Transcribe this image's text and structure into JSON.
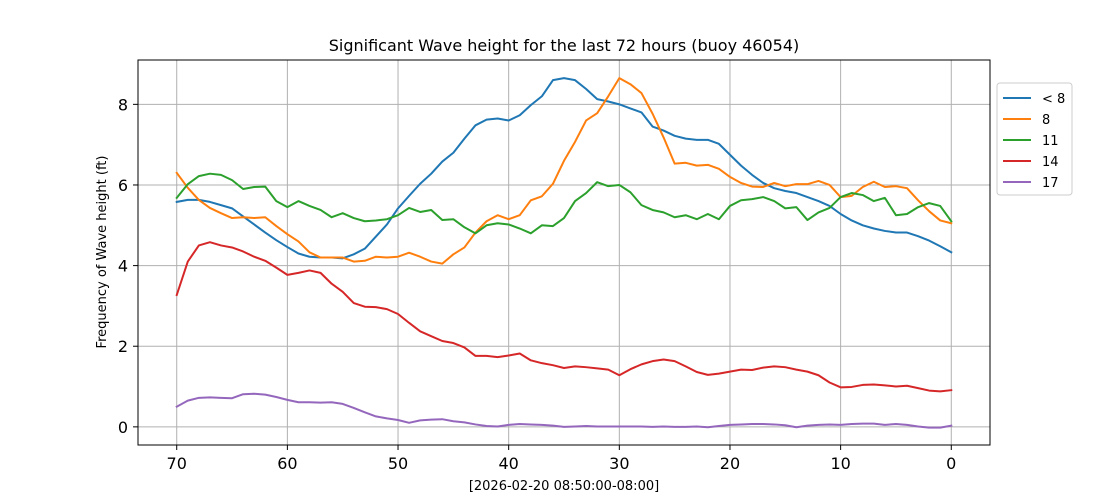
{
  "chart_data": {
    "type": "line",
    "title": "Significant Wave height for the last 72 hours (buoy 46054)",
    "xlabel": "[2026-02-20 08:50:00-08:00]",
    "ylabel": "Frequency of Wave height (ft)",
    "xlim": [
      73.5,
      -3.5
    ],
    "ylim": [
      -0.45,
      9.1
    ],
    "xticks": [
      70,
      60,
      50,
      40,
      30,
      20,
      10,
      0
    ],
    "yticks": [
      0,
      2,
      4,
      6,
      8
    ],
    "grid": true,
    "legend_position": "right",
    "x": [
      70,
      69,
      68,
      67,
      66,
      65,
      64,
      63,
      62,
      61,
      60,
      59,
      58,
      57,
      56,
      55,
      54,
      53,
      52,
      51,
      50,
      49,
      48,
      47,
      46,
      45,
      44,
      43,
      42,
      41,
      40,
      39,
      38,
      37,
      36,
      35,
      34,
      33,
      32,
      31,
      30,
      29,
      28,
      27,
      26,
      25,
      24,
      23,
      22,
      21,
      20,
      19,
      18,
      17,
      16,
      15,
      14,
      13,
      12,
      11,
      10,
      9,
      8,
      7,
      6,
      5,
      4,
      3,
      2,
      1,
      0
    ],
    "series": [
      {
        "name": "< 8",
        "color": "#1f77b4",
        "values": [
          5.58,
          5.63,
          5.63,
          5.58,
          5.5,
          5.42,
          5.22,
          5.02,
          4.82,
          4.63,
          4.46,
          4.3,
          4.22,
          4.2,
          4.2,
          4.18,
          4.28,
          4.42,
          4.72,
          5.02,
          5.42,
          5.73,
          6.03,
          6.28,
          6.58,
          6.8,
          7.15,
          7.48,
          7.62,
          7.65,
          7.6,
          7.73,
          7.98,
          8.2,
          8.6,
          8.65,
          8.6,
          8.38,
          8.13,
          8.07,
          8.0,
          7.9,
          7.8,
          7.45,
          7.35,
          7.22,
          7.15,
          7.12,
          7.12,
          7.02,
          6.75,
          6.48,
          6.25,
          6.05,
          5.92,
          5.85,
          5.8,
          5.7,
          5.6,
          5.48,
          5.28,
          5.12,
          5.0,
          4.92,
          4.86,
          4.82,
          4.82,
          4.73,
          4.62,
          4.48,
          4.33
        ]
      },
      {
        "name": "8",
        "color": "#ff7f0e",
        "values": [
          6.3,
          5.93,
          5.63,
          5.43,
          5.3,
          5.18,
          5.2,
          5.18,
          5.2,
          4.98,
          4.78,
          4.6,
          4.33,
          4.2,
          4.2,
          4.2,
          4.1,
          4.12,
          4.22,
          4.2,
          4.22,
          4.32,
          4.22,
          4.1,
          4.05,
          4.28,
          4.45,
          4.82,
          5.1,
          5.25,
          5.15,
          5.25,
          5.62,
          5.72,
          6.03,
          6.6,
          7.07,
          7.6,
          7.78,
          8.2,
          8.65,
          8.5,
          8.28,
          7.77,
          7.18,
          6.53,
          6.55,
          6.48,
          6.5,
          6.4,
          6.2,
          6.05,
          5.96,
          5.95,
          6.05,
          5.97,
          6.02,
          6.02,
          6.1,
          6.0,
          5.7,
          5.73,
          5.95,
          6.08,
          5.95,
          5.97,
          5.92,
          5.62,
          5.35,
          5.12,
          5.05
        ]
      },
      {
        "name": "11",
        "color": "#2ca02c",
        "values": [
          5.68,
          6.02,
          6.22,
          6.28,
          6.25,
          6.12,
          5.9,
          5.95,
          5.96,
          5.6,
          5.45,
          5.6,
          5.48,
          5.38,
          5.2,
          5.3,
          5.18,
          5.1,
          5.12,
          5.15,
          5.25,
          5.43,
          5.33,
          5.38,
          5.13,
          5.15,
          4.95,
          4.8,
          5.0,
          5.05,
          5.02,
          4.92,
          4.8,
          5.0,
          4.98,
          5.18,
          5.6,
          5.8,
          6.07,
          5.97,
          6.0,
          5.82,
          5.5,
          5.38,
          5.32,
          5.2,
          5.25,
          5.15,
          5.28,
          5.15,
          5.48,
          5.62,
          5.65,
          5.7,
          5.6,
          5.42,
          5.45,
          5.13,
          5.32,
          5.43,
          5.7,
          5.8,
          5.75,
          5.6,
          5.68,
          5.25,
          5.28,
          5.45,
          5.55,
          5.48,
          5.1
        ]
      },
      {
        "name": "14",
        "color": "#d62728",
        "values": [
          3.27,
          4.1,
          4.5,
          4.58,
          4.5,
          4.45,
          4.35,
          4.22,
          4.12,
          3.95,
          3.77,
          3.82,
          3.88,
          3.82,
          3.55,
          3.35,
          3.07,
          2.98,
          2.97,
          2.92,
          2.8,
          2.58,
          2.37,
          2.25,
          2.13,
          2.08,
          1.97,
          1.76,
          1.76,
          1.73,
          1.77,
          1.82,
          1.65,
          1.58,
          1.53,
          1.46,
          1.5,
          1.48,
          1.45,
          1.42,
          1.28,
          1.43,
          1.55,
          1.63,
          1.67,
          1.63,
          1.5,
          1.36,
          1.29,
          1.32,
          1.37,
          1.42,
          1.41,
          1.47,
          1.5,
          1.48,
          1.42,
          1.37,
          1.28,
          1.1,
          0.98,
          0.99,
          1.04,
          1.05,
          1.03,
          1.0,
          1.02,
          0.96,
          0.9,
          0.88,
          0.91
        ]
      },
      {
        "name": "17",
        "color": "#9467bd",
        "values": [
          0.5,
          0.65,
          0.72,
          0.73,
          0.72,
          0.71,
          0.81,
          0.82,
          0.8,
          0.74,
          0.67,
          0.61,
          0.61,
          0.6,
          0.61,
          0.57,
          0.47,
          0.36,
          0.26,
          0.21,
          0.17,
          0.1,
          0.16,
          0.18,
          0.19,
          0.14,
          0.11,
          0.06,
          0.02,
          0.01,
          0.05,
          0.07,
          0.06,
          0.05,
          0.03,
          0.0,
          0.01,
          0.02,
          0.01,
          0.01,
          0.01,
          0.01,
          0.01,
          0.0,
          0.01,
          0.0,
          0.0,
          0.01,
          -0.01,
          0.02,
          0.05,
          0.06,
          0.07,
          0.07,
          0.06,
          0.04,
          -0.01,
          0.03,
          0.05,
          0.06,
          0.05,
          0.07,
          0.08,
          0.08,
          0.05,
          0.07,
          0.05,
          0.01,
          -0.02,
          -0.02,
          0.03
        ]
      }
    ]
  }
}
